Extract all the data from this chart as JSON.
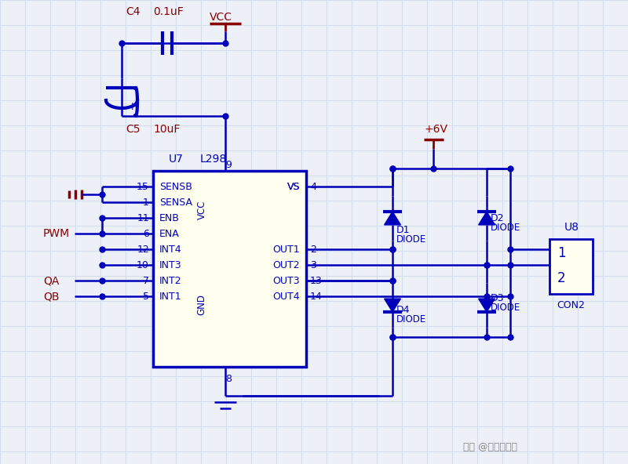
{
  "bg_color": "#eef0f8",
  "grid_color": "#d0d8e8",
  "blue": "#0000bb",
  "dark_red": "#880000",
  "yellow_fill": "#fffff0",
  "yellow_stroke": "#0000bb",
  "watermark": "知乎 @雕爷字编程",
  "ic_pins_left": [
    "SENSB",
    "SENSA",
    "ENB",
    "ENA",
    "INT4",
    "INT3",
    "INT2",
    "INT1"
  ],
  "ic_pins_right": [
    "VS",
    "",
    "",
    "",
    "OUT1",
    "OUT2",
    "OUT3",
    "OUT4"
  ],
  "pin_nums_left": [
    "15",
    "1",
    "11",
    "6",
    "12",
    "10",
    "7",
    "5"
  ],
  "pin_nums_right": [
    "4",
    "",
    "",
    "",
    "2",
    "3",
    "13",
    "14"
  ]
}
